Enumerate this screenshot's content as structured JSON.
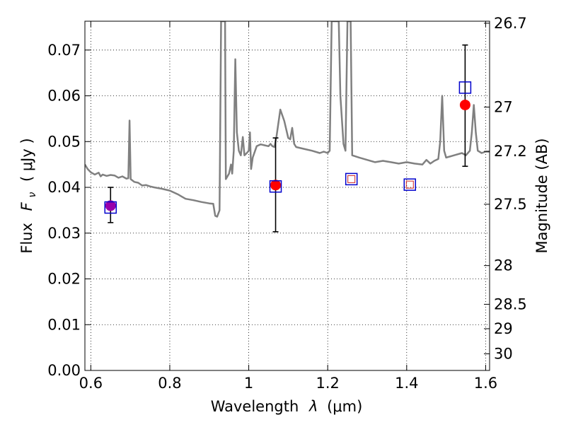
{
  "chart_data": {
    "type": "scatter",
    "xlabel_prefix": "Wavelength",
    "xlabel_symbol": "λ",
    "xlabel_unit": "(μm)",
    "ylabel_prefix": "Flux",
    "ylabel_symbol": "F",
    "ylabel_sub": "ν",
    "ylabel_unit": "( μJy )",
    "ylabel_right": "Magnitude (AB)",
    "xlim": [
      0.585,
      1.61
    ],
    "ylim": [
      0.0,
      0.0763
    ],
    "x_ticks": [
      {
        "value": 0.6,
        "label": "0.6"
      },
      {
        "value": 0.8,
        "label": "0.8"
      },
      {
        "value": 1.0,
        "label": "1"
      },
      {
        "value": 1.2,
        "label": "1.2"
      },
      {
        "value": 1.4,
        "label": "1.4"
      },
      {
        "value": 1.6,
        "label": "1.6"
      }
    ],
    "y_ticks": [
      {
        "value": 0.0,
        "label": "0.00"
      },
      {
        "value": 0.01,
        "label": "0.01"
      },
      {
        "value": 0.02,
        "label": "0.02"
      },
      {
        "value": 0.03,
        "label": "0.03"
      },
      {
        "value": 0.04,
        "label": "0.04"
      },
      {
        "value": 0.05,
        "label": "0.05"
      },
      {
        "value": 0.06,
        "label": "0.06"
      },
      {
        "value": 0.07,
        "label": "0.07"
      }
    ],
    "mag_ticks": [
      {
        "value": 26.7,
        "label": "26.7"
      },
      {
        "value": 27.0,
        "label": "27"
      },
      {
        "value": 27.2,
        "label": "27.2"
      },
      {
        "value": 27.5,
        "label": "27.5"
      },
      {
        "value": 28.0,
        "label": "28"
      },
      {
        "value": 28.5,
        "label": "28.5"
      },
      {
        "value": 29.0,
        "label": "29"
      },
      {
        "value": 30.0,
        "label": "30"
      }
    ],
    "grid": true,
    "grid_style": "dotted",
    "colors": {
      "spectrum": "#808080",
      "observed": "#ff0000",
      "model_box": "#0000cc",
      "small_box": "#cc2222",
      "purple": "#9900aa",
      "errorbar": "#000000"
    },
    "series": [
      {
        "kind": "line",
        "points": [
          [
            0.585,
            0.045
          ],
          [
            0.592,
            0.044
          ],
          [
            0.6,
            0.0433
          ],
          [
            0.61,
            0.0428
          ],
          [
            0.62,
            0.0432
          ],
          [
            0.625,
            0.0424
          ],
          [
            0.63,
            0.0428
          ],
          [
            0.64,
            0.0425
          ],
          [
            0.65,
            0.0427
          ],
          [
            0.66,
            0.0426
          ],
          [
            0.67,
            0.0421
          ],
          [
            0.68,
            0.0424
          ],
          [
            0.69,
            0.0419
          ],
          [
            0.695,
            0.042
          ],
          [
            0.698,
            0.0546
          ],
          [
            0.701,
            0.0418
          ],
          [
            0.71,
            0.0412
          ],
          [
            0.72,
            0.041
          ],
          [
            0.73,
            0.0404
          ],
          [
            0.74,
            0.0405
          ],
          [
            0.75,
            0.0402
          ],
          [
            0.76,
            0.04
          ],
          [
            0.78,
            0.0397
          ],
          [
            0.8,
            0.0393
          ],
          [
            0.82,
            0.0385
          ],
          [
            0.84,
            0.0375
          ],
          [
            0.86,
            0.0372
          ],
          [
            0.88,
            0.0368
          ],
          [
            0.9,
            0.0365
          ],
          [
            0.91,
            0.0364
          ],
          [
            0.915,
            0.0338
          ],
          [
            0.92,
            0.0336
          ],
          [
            0.926,
            0.035
          ],
          [
            0.93,
            0.0763
          ],
          [
            0.94,
            0.0763
          ],
          [
            0.942,
            0.0418
          ],
          [
            0.95,
            0.043
          ],
          [
            0.955,
            0.045
          ],
          [
            0.958,
            0.043
          ],
          [
            0.962,
            0.048
          ],
          [
            0.966,
            0.068
          ],
          [
            0.97,
            0.052
          ],
          [
            0.975,
            0.048
          ],
          [
            0.98,
            0.047
          ],
          [
            0.985,
            0.051
          ],
          [
            0.989,
            0.047
          ],
          [
            0.995,
            0.0475
          ],
          [
            1.0,
            0.048
          ],
          [
            1.003,
            0.052
          ],
          [
            1.006,
            0.044
          ],
          [
            1.01,
            0.0465
          ],
          [
            1.02,
            0.049
          ],
          [
            1.03,
            0.0494
          ],
          [
            1.04,
            0.0492
          ],
          [
            1.05,
            0.049
          ],
          [
            1.055,
            0.0495
          ],
          [
            1.06,
            0.049
          ],
          [
            1.065,
            0.0488
          ],
          [
            1.07,
            0.051
          ],
          [
            1.08,
            0.057
          ],
          [
            1.09,
            0.0545
          ],
          [
            1.1,
            0.0508
          ],
          [
            1.105,
            0.0505
          ],
          [
            1.11,
            0.053
          ],
          [
            1.115,
            0.0495
          ],
          [
            1.12,
            0.0488
          ],
          [
            1.14,
            0.0484
          ],
          [
            1.16,
            0.048
          ],
          [
            1.18,
            0.0475
          ],
          [
            1.19,
            0.0478
          ],
          [
            1.2,
            0.0475
          ],
          [
            1.205,
            0.048
          ],
          [
            1.21,
            0.0763
          ],
          [
            1.22,
            0.0763
          ],
          [
            1.228,
            0.0763
          ],
          [
            1.232,
            0.06
          ],
          [
            1.24,
            0.0495
          ],
          [
            1.245,
            0.048
          ],
          [
            1.25,
            0.0763
          ],
          [
            1.258,
            0.0763
          ],
          [
            1.262,
            0.047
          ],
          [
            1.28,
            0.0465
          ],
          [
            1.3,
            0.046
          ],
          [
            1.32,
            0.0455
          ],
          [
            1.34,
            0.0458
          ],
          [
            1.36,
            0.0455
          ],
          [
            1.38,
            0.0452
          ],
          [
            1.4,
            0.0455
          ],
          [
            1.42,
            0.0452
          ],
          [
            1.44,
            0.045
          ],
          [
            1.45,
            0.046
          ],
          [
            1.46,
            0.0452
          ],
          [
            1.47,
            0.0458
          ],
          [
            1.48,
            0.0462
          ],
          [
            1.485,
            0.05
          ],
          [
            1.49,
            0.06
          ],
          [
            1.495,
            0.048
          ],
          [
            1.5,
            0.0465
          ],
          [
            1.52,
            0.047
          ],
          [
            1.54,
            0.0475
          ],
          [
            1.55,
            0.047
          ],
          [
            1.56,
            0.048
          ],
          [
            1.565,
            0.052
          ],
          [
            1.57,
            0.058
          ],
          [
            1.575,
            0.052
          ],
          [
            1.58,
            0.048
          ],
          [
            1.59,
            0.0475
          ],
          [
            1.6,
            0.0478
          ],
          [
            1.61,
            0.0478
          ]
        ]
      },
      {
        "kind": "scatter",
        "marker": "circle",
        "points": [
          {
            "x": 0.65,
            "y": 0.036,
            "err": [
              0.0323,
              0.04
            ],
            "color": "purple"
          },
          {
            "x": 1.068,
            "y": 0.0405,
            "err": [
              0.0303,
              0.0508
            ],
            "color": "observed"
          },
          {
            "x": 1.548,
            "y": 0.058,
            "err": [
              0.0446,
              0.0711
            ],
            "color": "observed"
          }
        ]
      },
      {
        "kind": "scatter",
        "marker": "square",
        "points": [
          {
            "x": 0.65,
            "y": 0.0356
          },
          {
            "x": 1.068,
            "y": 0.0402
          },
          {
            "x": 1.26,
            "y": 0.0418
          },
          {
            "x": 1.408,
            "y": 0.0406
          },
          {
            "x": 1.548,
            "y": 0.0618
          }
        ]
      },
      {
        "kind": "scatter",
        "marker": "small-square",
        "points": [
          {
            "x": 1.26,
            "y": 0.0418
          },
          {
            "x": 1.408,
            "y": 0.0406
          }
        ]
      }
    ]
  }
}
